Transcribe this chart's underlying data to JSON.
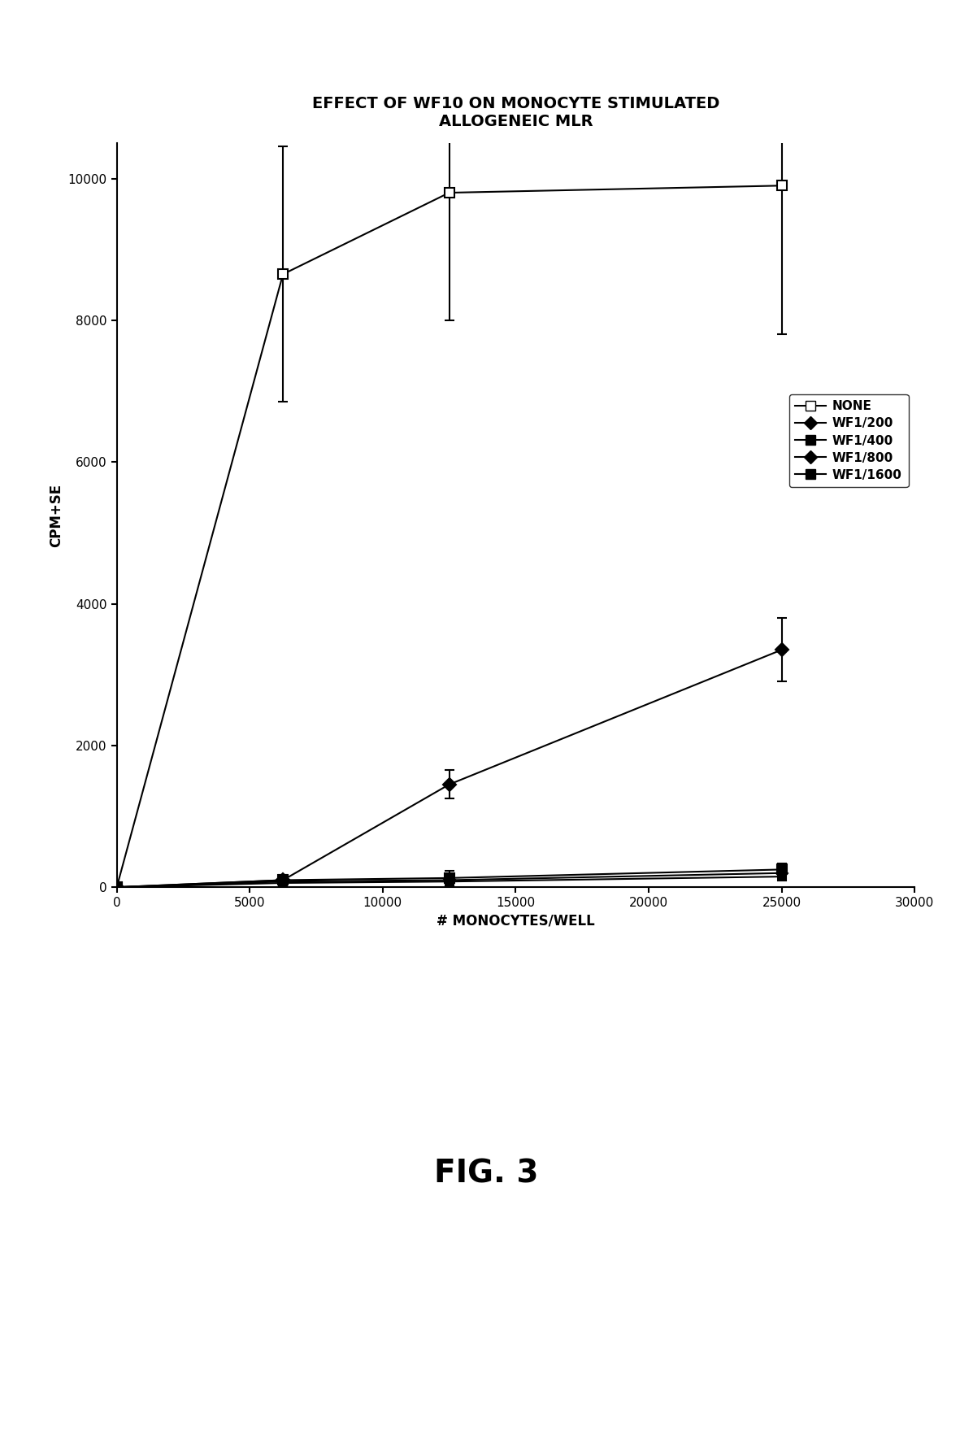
{
  "title": "EFFECT OF WF10 ON MONOCYTE STIMULATED\nALLOGENEIC MLR",
  "xlabel": "# MONOCYTES/WELL",
  "ylabel": "CPM+SE",
  "fig_label": "FIG. 3",
  "xlim": [
    0,
    30000
  ],
  "ylim": [
    0,
    10500
  ],
  "xticks": [
    0,
    5000,
    10000,
    15000,
    20000,
    25000,
    30000
  ],
  "yticks": [
    0,
    2000,
    4000,
    6000,
    8000,
    10000
  ],
  "x": [
    0,
    6250,
    12500,
    25000
  ],
  "series": [
    {
      "label": "NONE",
      "y": [
        0,
        8650,
        9800,
        9900
      ],
      "yerr": [
        0,
        1800,
        1800,
        2100
      ],
      "marker": "s",
      "marker_fill": "white",
      "marker_size": 8,
      "linestyle": "-",
      "color": "#000000"
    },
    {
      "label": "WF1/200",
      "y": [
        0,
        100,
        1450,
        3350
      ],
      "yerr": [
        0,
        80,
        200,
        450
      ],
      "marker": "D",
      "marker_fill": "black",
      "marker_size": 8,
      "linestyle": "-",
      "color": "#000000"
    },
    {
      "label": "WF1/400",
      "y": [
        0,
        100,
        130,
        250
      ],
      "yerr": [
        0,
        60,
        100,
        80
      ],
      "marker": "s",
      "marker_fill": "black",
      "marker_size": 8,
      "linestyle": "-",
      "color": "#000000"
    },
    {
      "label": "WF1/800",
      "y": [
        0,
        80,
        100,
        200
      ],
      "yerr": [
        0,
        40,
        60,
        60
      ],
      "marker": "D",
      "marker_fill": "black",
      "marker_size": 7,
      "linestyle": "-",
      "color": "#000000"
    },
    {
      "label": "WF1/1600",
      "y": [
        0,
        60,
        80,
        150
      ],
      "yerr": [
        0,
        30,
        50,
        50
      ],
      "marker": "s",
      "marker_fill": "black",
      "marker_size": 7,
      "linestyle": "-",
      "color": "#000000"
    }
  ],
  "legend_labels": [
    "NONE",
    "WF1/200",
    "WF1/400",
    "WF1/800",
    "WF1/1600"
  ],
  "legend_markers": [
    "s",
    "D",
    "s",
    "D",
    "s"
  ],
  "legend_fills": [
    "white",
    "black",
    "black",
    "black",
    "black"
  ],
  "background_color": "#ffffff",
  "title_fontsize": 14,
  "axis_fontsize": 12,
  "tick_fontsize": 11,
  "legend_fontsize": 11,
  "fig_label_fontsize": 28
}
